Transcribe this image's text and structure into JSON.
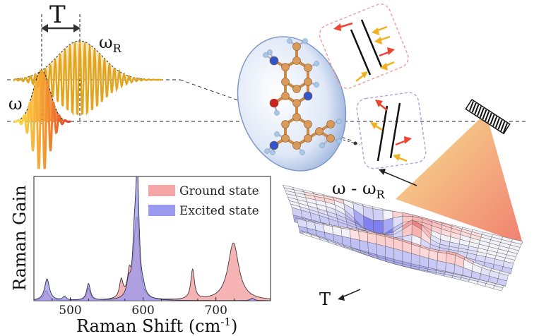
{
  "pulse_panel": {
    "label_T": "T",
    "label_omega": "ω",
    "label_omega_R_base": "ω",
    "label_omega_R_sub": "R"
  },
  "molecule_panel": {
    "atom_colors": {
      "carbon": "#d99a5a",
      "hydrogen": "#a8c8e8",
      "nitrogen": "#3355cc",
      "oxygen": "#cc2222"
    },
    "bubble_color": "#c7d7f0"
  },
  "surface_panel": {
    "axis_label_diag_base": "ω - ω",
    "axis_label_diag_sub": "R",
    "axis_label_T": "T",
    "cone_colors": [
      "#f5d27a",
      "#f08a6a"
    ]
  },
  "chart_data": {
    "type": "line",
    "xlabel_base": "Raman Shift (cm",
    "xlabel_sup": "-1",
    "xlabel_end": ")",
    "ylabel": "Raman Gain",
    "xlim": [
      450,
      775
    ],
    "xticks": [
      "500",
      "600",
      "700"
    ],
    "xtick_values": [
      500,
      600,
      700
    ],
    "legend_position": "top-right",
    "series": [
      {
        "name": "Ground state",
        "color": "#f4a6a6",
        "peaks": [
          {
            "x": 467,
            "h": 0.08,
            "w": 4
          },
          {
            "x": 525,
            "h": 0.1,
            "w": 3
          },
          {
            "x": 570,
            "h": 0.15,
            "w": 3
          },
          {
            "x": 581,
            "h": 0.18,
            "w": 3
          },
          {
            "x": 590,
            "h": 0.5,
            "w": 4
          },
          {
            "x": 593,
            "h": 0.3,
            "w": 3
          },
          {
            "x": 668,
            "h": 0.25,
            "w": 3
          },
          {
            "x": 724,
            "h": 0.48,
            "w": 9
          }
        ]
      },
      {
        "name": "Excited state",
        "color": "#9a9af0",
        "peaks": [
          {
            "x": 468,
            "h": 0.18,
            "w": 4
          },
          {
            "x": 492,
            "h": 0.03,
            "w": 3
          },
          {
            "x": 525,
            "h": 0.14,
            "w": 3
          },
          {
            "x": 580,
            "h": 0.12,
            "w": 3
          },
          {
            "x": 592,
            "h": 0.98,
            "w": 3
          },
          {
            "x": 588,
            "h": 0.35,
            "w": 3
          },
          {
            "x": 600,
            "h": 0.05,
            "w": 3
          },
          {
            "x": 750,
            "h": 0.02,
            "w": 3
          }
        ]
      }
    ]
  }
}
